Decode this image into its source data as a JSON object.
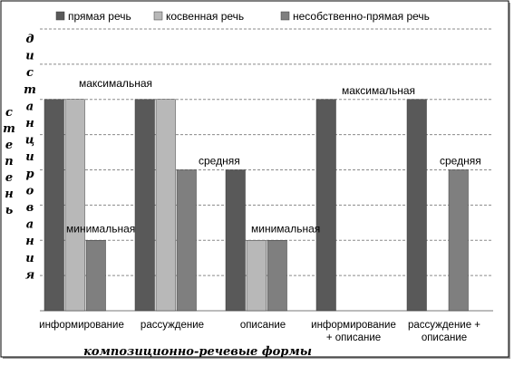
{
  "chart_data": {
    "type": "bar",
    "categories": [
      [
        "информирование"
      ],
      [
        "рассуждение"
      ],
      [
        "описание"
      ],
      [
        "информирование",
        "+ описание"
      ],
      [
        "рассуждение +",
        "описание"
      ]
    ],
    "series": [
      {
        "name": "прямая речь",
        "values": [
          3,
          3,
          2,
          3,
          3
        ],
        "color": "#595959"
      },
      {
        "name": "косвенная речь",
        "values": [
          3,
          3,
          1,
          null,
          null
        ],
        "color": "#b8b8b8"
      },
      {
        "name": "несобственно-прямая речь",
        "values": [
          1,
          2,
          1,
          null,
          2
        ],
        "color": "#7f7f7f"
      }
    ],
    "level_labels": {
      "3": "максимальная",
      "2": "средняя",
      "1": "минимальная"
    },
    "annotations": [
      {
        "category_index": 0,
        "value": 3,
        "text": "максимальная"
      },
      {
        "category_index": 1,
        "value": 2,
        "text": "средняя"
      },
      {
        "category_index": 0,
        "value": 1,
        "text": "минимальная"
      },
      {
        "category_index": 2,
        "value": 1,
        "text": "минимальная"
      },
      {
        "category_index": 3,
        "value": 3,
        "text": "максимальная"
      },
      {
        "category_index": 4,
        "value": 2,
        "text": "средняя"
      }
    ],
    "ylabel_outer": "степень",
    "ylabel_inner": "дистанцирования",
    "xlabel": "композиционно-речевые формы",
    "ylim": [
      0,
      4
    ],
    "grid": true,
    "legend_position": "top"
  }
}
